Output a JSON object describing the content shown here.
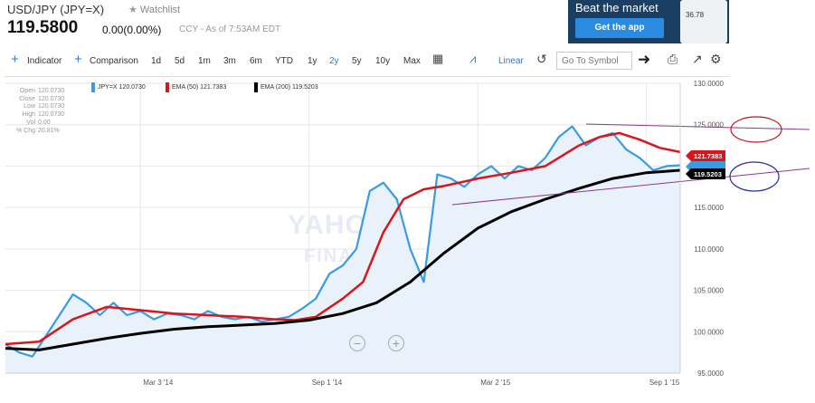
{
  "quote": {
    "title": "USD/JPY (JPY=X)",
    "watchlist": "Watchlist",
    "price": "119.5800",
    "change": "0.00(0.00%)",
    "ccy": "CCY - As of 7:53AM EDT"
  },
  "ad": {
    "title": "Beat the market",
    "button": "Get the app",
    "phone_value": "36.78"
  },
  "toolbar": {
    "indicator": "Indicator",
    "comparison": "Comparison",
    "ranges": [
      "1d",
      "5d",
      "1m",
      "3m",
      "6m",
      "YTD",
      "1y",
      "2y",
      "5y",
      "10y",
      "Max"
    ],
    "selected_range": "2y",
    "linear": "Linear",
    "symbol_placeholder": "Go To Symbol"
  },
  "stats": [
    {
      "k": "Open",
      "v": "120.0730"
    },
    {
      "k": "Close",
      "v": "120.0730"
    },
    {
      "k": "Low",
      "v": "120.0730"
    },
    {
      "k": "High",
      "v": "120.0730"
    },
    {
      "k": "Vol",
      "v": "0.00"
    },
    {
      "k": "% Chg",
      "v": "20.81%"
    }
  ],
  "legend": [
    {
      "label": "JPY=X 120.0730",
      "color": "#3a9be3"
    },
    {
      "label": "EMA (50) 121.7383",
      "color": "#d8161e"
    },
    {
      "label": "EMA (200) 119.5203",
      "color": "#000000"
    }
  ],
  "watermark": {
    "line1": "YAHOO!",
    "line2": "FINANCE"
  },
  "zoom": {
    "out": "−",
    "in": "+"
  },
  "chart_data": {
    "type": "line",
    "ylim": [
      95,
      130
    ],
    "y_ticks": [
      "130.0000",
      "125.0000",
      "120.0000",
      "115.0000",
      "110.0000",
      "105.0000",
      "100.0000",
      "95.0000"
    ],
    "y_tick_values": [
      130,
      125,
      120,
      115,
      110,
      105,
      100,
      95
    ],
    "x_ticks": [
      "Mar 3 '14",
      "Sep 1 '14",
      "Mar 2 '15",
      "Sep 1 '15"
    ],
    "x_tick_values": [
      0.2,
      0.45,
      0.7,
      0.95
    ],
    "series": [
      {
        "name": "JPY=X",
        "color": "#3a9be3",
        "x": [
          0.0,
          0.02,
          0.04,
          0.06,
          0.08,
          0.1,
          0.12,
          0.14,
          0.16,
          0.18,
          0.2,
          0.22,
          0.24,
          0.26,
          0.28,
          0.3,
          0.32,
          0.34,
          0.36,
          0.38,
          0.4,
          0.42,
          0.44,
          0.46,
          0.48,
          0.5,
          0.52,
          0.54,
          0.56,
          0.58,
          0.6,
          0.62,
          0.64,
          0.66,
          0.68,
          0.7,
          0.72,
          0.74,
          0.76,
          0.78,
          0.8,
          0.82,
          0.84,
          0.86,
          0.88,
          0.9,
          0.92,
          0.94,
          0.96,
          0.98,
          1.0
        ],
        "y": [
          98.5,
          97.5,
          97.0,
          99.5,
          102.0,
          104.5,
          103.5,
          102.0,
          103.5,
          102.0,
          102.5,
          101.5,
          102.2,
          102.0,
          101.5,
          102.5,
          101.8,
          101.5,
          101.8,
          101.2,
          101.5,
          101.8,
          102.8,
          104.0,
          107.0,
          108.0,
          110.0,
          117.0,
          118.0,
          116.0,
          110.0,
          106.0,
          119.0,
          118.5,
          117.5,
          119.0,
          120.0,
          118.5,
          120.0,
          119.5,
          121.0,
          123.5,
          124.8,
          122.5,
          123.5,
          124.0,
          122.0,
          121.0,
          119.5,
          120.0,
          120.1
        ]
      },
      {
        "name": "EMA (50)",
        "color": "#d8161e",
        "x": [
          0.0,
          0.05,
          0.1,
          0.15,
          0.2,
          0.25,
          0.3,
          0.35,
          0.4,
          0.43,
          0.46,
          0.5,
          0.53,
          0.56,
          0.59,
          0.62,
          0.65,
          0.7,
          0.75,
          0.8,
          0.85,
          0.88,
          0.91,
          0.94,
          0.97,
          1.0
        ],
        "y": [
          98.5,
          98.8,
          101.5,
          103.0,
          102.6,
          102.2,
          102.0,
          101.8,
          101.5,
          101.4,
          101.8,
          104.0,
          106.0,
          112.0,
          116.0,
          117.2,
          117.6,
          118.5,
          119.2,
          120.0,
          122.5,
          123.5,
          124.0,
          123.2,
          122.2,
          121.7
        ]
      },
      {
        "name": "EMA (200)",
        "color": "#000000",
        "x": [
          0.0,
          0.05,
          0.1,
          0.15,
          0.2,
          0.25,
          0.3,
          0.35,
          0.4,
          0.45,
          0.5,
          0.55,
          0.6,
          0.65,
          0.7,
          0.75,
          0.8,
          0.85,
          0.9,
          0.95,
          1.0
        ],
        "y": [
          98.0,
          97.8,
          98.5,
          99.2,
          99.8,
          100.3,
          100.6,
          100.8,
          101.0,
          101.4,
          102.2,
          103.5,
          106.0,
          109.5,
          112.5,
          114.5,
          116.0,
          117.3,
          118.5,
          119.2,
          119.5
        ]
      }
    ],
    "annotations": [
      {
        "type": "label",
        "value": "121.7383",
        "color": "#d8161e"
      },
      {
        "type": "label",
        "value": "119.5203",
        "color": "#000000"
      }
    ]
  }
}
